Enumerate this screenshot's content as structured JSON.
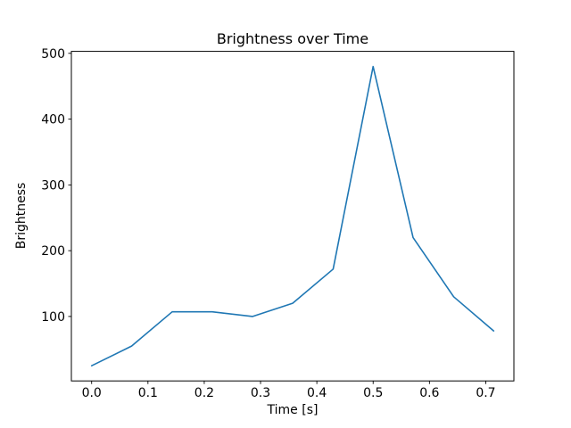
{
  "figure": {
    "title": "Brightness over Time",
    "xlabel": "Time [s]",
    "ylabel": "Brightness"
  },
  "chart_data": {
    "type": "line",
    "title": "Brightness over Time",
    "xlabel": "Time [s]",
    "ylabel": "Brightness",
    "x": [
      0.0,
      0.071,
      0.143,
      0.214,
      0.286,
      0.357,
      0.429,
      0.5,
      0.571,
      0.643,
      0.714
    ],
    "y": [
      25,
      55,
      107,
      107,
      100,
      120,
      172,
      480,
      220,
      130,
      78
    ],
    "xlim": [
      -0.036,
      0.75
    ],
    "ylim": [
      2,
      503
    ],
    "xticks": [
      0.0,
      0.1,
      0.2,
      0.3,
      0.4,
      0.5,
      0.6,
      0.7
    ],
    "xtick_labels": [
      "0.0",
      "0.1",
      "0.2",
      "0.3",
      "0.4",
      "0.5",
      "0.6",
      "0.7"
    ],
    "yticks": [
      100,
      200,
      300,
      400,
      500
    ],
    "ytick_labels": [
      "100",
      "200",
      "300",
      "400",
      "500"
    ],
    "line_color": "#1f77b4",
    "spine_color": "#000000",
    "grid": false,
    "legend": null
  }
}
